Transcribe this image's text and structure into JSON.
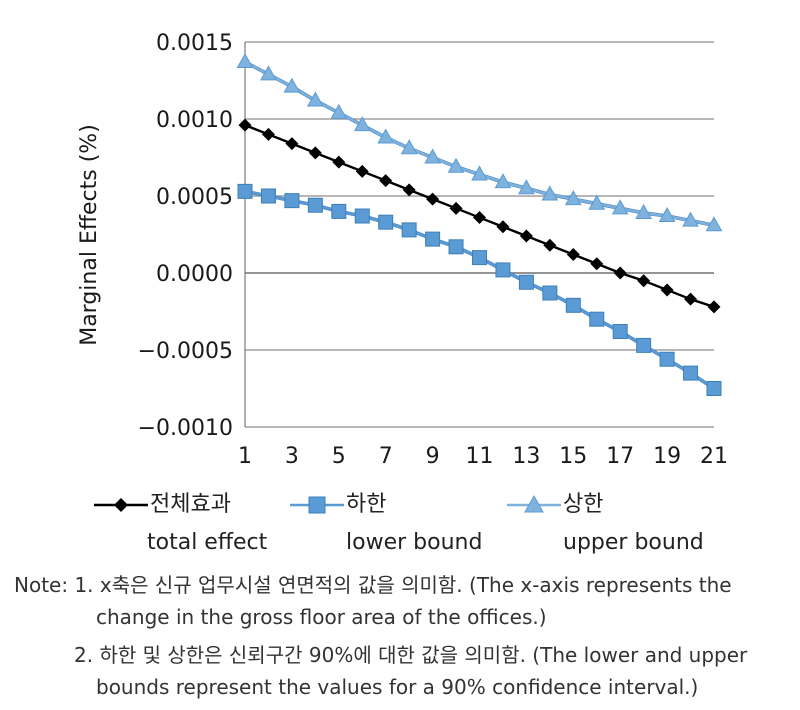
{
  "chart_data": {
    "type": "line",
    "x": [
      1,
      2,
      3,
      4,
      5,
      6,
      7,
      8,
      9,
      10,
      11,
      12,
      13,
      14,
      15,
      16,
      17,
      18,
      19,
      20,
      21
    ],
    "x_ticks": [
      "1",
      "3",
      "5",
      "7",
      "9",
      "11",
      "13",
      "15",
      "17",
      "19",
      "21"
    ],
    "y_ticks": [
      "0.0015",
      "0.0010",
      "0.0005",
      "0.0000",
      "−0.0005",
      "−0.0010"
    ],
    "ylim": [
      -0.001,
      0.0015
    ],
    "xlim": [
      1,
      21
    ],
    "ylabel": "Marginal Effects (%)",
    "xlabel": "",
    "grid": true,
    "legend_position": "bottom",
    "series": [
      {
        "name": "전체효과",
        "name_en": "total effect",
        "marker": "diamond",
        "color": "#000000",
        "values": [
          0.00096,
          0.0009,
          0.00084,
          0.00078,
          0.00072,
          0.00066,
          0.0006,
          0.00054,
          0.00048,
          0.00042,
          0.00036,
          0.0003,
          0.00024,
          0.00018,
          0.00012,
          6e-05,
          0.0,
          -5e-05,
          -0.00011,
          -0.00017,
          -0.00022
        ]
      },
      {
        "name": "하한",
        "name_en": "lower bound",
        "marker": "square",
        "color": "#5b9bd5",
        "values": [
          0.00053,
          0.0005,
          0.00047,
          0.00044,
          0.0004,
          0.00037,
          0.00033,
          0.00028,
          0.00022,
          0.00017,
          0.0001,
          2e-05,
          -6e-05,
          -0.00013,
          -0.00021,
          -0.0003,
          -0.00038,
          -0.00047,
          -0.00056,
          -0.00065,
          -0.00075
        ]
      },
      {
        "name": "상한",
        "name_en": "upper bound",
        "marker": "triangle",
        "color": "#7fb3de",
        "values": [
          0.00137,
          0.00129,
          0.00121,
          0.00112,
          0.00104,
          0.00096,
          0.00088,
          0.00081,
          0.00075,
          0.00069,
          0.00064,
          0.00059,
          0.00055,
          0.00051,
          0.00048,
          0.00045,
          0.00042,
          0.00039,
          0.00037,
          0.00034,
          0.00031
        ]
      }
    ]
  },
  "notes": {
    "line1": "Note: 1. x축은 신규 업무시설 연면적의 값을 의미함. (The x-axis represents the",
    "line2": "change in the gross floor area of the offices.)",
    "line3": "2. 하한 및 상한은 신뢰구간 90%에 대한 값을 의미함. (The lower and upper",
    "line4": "bounds represent the values for a 90% confidence interval.)"
  }
}
